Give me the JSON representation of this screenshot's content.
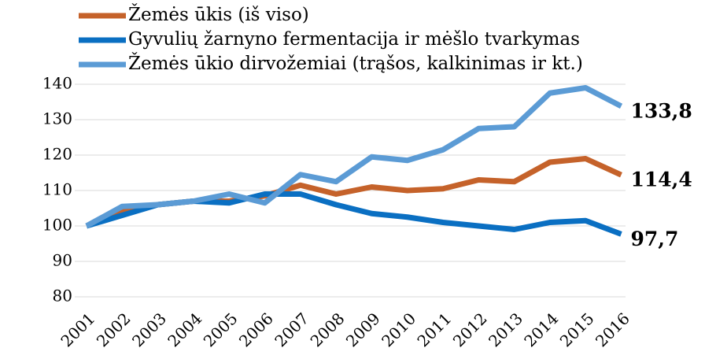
{
  "chart_data": {
    "type": "line",
    "categories": [
      "2001",
      "2002",
      "2003",
      "2004",
      "2005",
      "2006",
      "2007",
      "2008",
      "2009",
      "2010",
      "2011",
      "2012",
      "2013",
      "2014",
      "2015",
      "2016"
    ],
    "series": [
      {
        "name": "Žemės ūkis (iš viso)",
        "color": "#c5622a",
        "values": [
          100,
          104,
          106,
          107,
          107,
          108.5,
          111.5,
          109,
          111,
          110,
          110.5,
          113,
          112.5,
          118,
          119,
          114.4
        ],
        "value_labels": [
          null,
          null,
          null,
          null,
          null,
          null,
          null,
          null,
          null,
          null,
          null,
          null,
          null,
          null,
          null,
          "114,4"
        ]
      },
      {
        "name": "Gyvulių žarnyno fermentacija ir mėšlo tvarkymas",
        "color": "#0a6fc2",
        "values": [
          100,
          103,
          106,
          107,
          106.5,
          109,
          109,
          106,
          103.5,
          102.5,
          101,
          100,
          99,
          101,
          101.5,
          97.7
        ],
        "value_labels": [
          null,
          null,
          null,
          null,
          null,
          null,
          null,
          null,
          null,
          null,
          null,
          null,
          null,
          null,
          null,
          "97,7"
        ]
      },
      {
        "name": "Žemės ūkio dirvožemiai (trąšos, kalkinimas ir kt.)",
        "color": "#5b9bd5",
        "values": [
          100,
          105.5,
          106,
          107,
          109,
          106.5,
          114.5,
          112.5,
          119.5,
          118.5,
          121.5,
          127.5,
          128,
          137.5,
          139,
          133.8
        ],
        "value_labels": [
          null,
          null,
          null,
          null,
          null,
          null,
          null,
          null,
          null,
          null,
          null,
          null,
          null,
          null,
          null,
          "133,8"
        ]
      }
    ],
    "ylim": [
      80,
      140
    ],
    "yticks": [
      80,
      90,
      100,
      110,
      120,
      130,
      140
    ],
    "grid": true
  }
}
